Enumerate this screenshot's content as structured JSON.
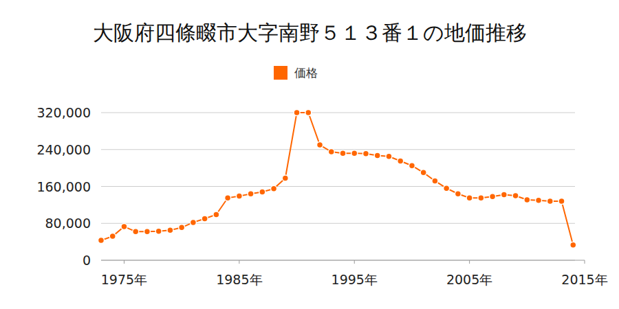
{
  "chart_data": {
    "type": "line",
    "title": "大阪府四條畷市大字南野５１３番１の地価推移",
    "x": [
      1973,
      1974,
      1975,
      1976,
      1977,
      1978,
      1979,
      1980,
      1981,
      1982,
      1983,
      1984,
      1985,
      1986,
      1987,
      1988,
      1989,
      1990,
      1991,
      1992,
      1993,
      1994,
      1995,
      1996,
      1997,
      1998,
      1999,
      2000,
      2001,
      2002,
      2003,
      2004,
      2005,
      2006,
      2007,
      2008,
      2009,
      2010,
      2011,
      2012,
      2013,
      2014
    ],
    "series": [
      {
        "name": "価格",
        "color": "#ff6600",
        "marker": "circle",
        "values": [
          43000,
          52000,
          73000,
          62000,
          62000,
          63000,
          65000,
          71000,
          82000,
          90000,
          99000,
          135000,
          139000,
          144000,
          148000,
          155000,
          178000,
          320000,
          320000,
          250000,
          235000,
          232000,
          232000,
          231000,
          227000,
          225000,
          215000,
          205000,
          190000,
          172000,
          156000,
          144000,
          135000,
          135000,
          138000,
          142000,
          140000,
          131000,
          130000,
          128000,
          128000,
          33000
        ]
      }
    ],
    "xlim": [
      1973,
      2015
    ],
    "xticks": [
      {
        "value": 1975,
        "label": "1975年"
      },
      {
        "value": 1985,
        "label": "1985年"
      },
      {
        "value": 1995,
        "label": "1995年"
      },
      {
        "value": 2005,
        "label": "2005年"
      },
      {
        "value": 2015,
        "label": "2015年"
      }
    ],
    "ylim": [
      0,
      320000
    ],
    "yticks": [
      0,
      {
        "value": 80000,
        "label": "80,000"
      },
      {
        "value": 160000,
        "label": "160,000"
      },
      {
        "value": 240000,
        "label": "240,000"
      },
      {
        "value": 320000,
        "label": "320,000"
      }
    ],
    "grid": true,
    "legend": "top"
  }
}
